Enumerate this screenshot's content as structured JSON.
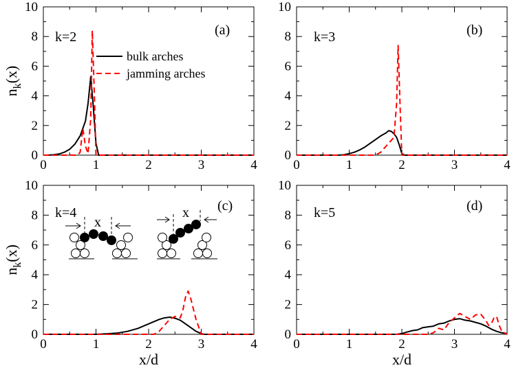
{
  "chart_data": [
    {
      "type": "line",
      "panel": "(a)",
      "k_label": "k=2",
      "xlabel": "",
      "ylabel": "n_k(x)",
      "xlim": [
        0,
        4
      ],
      "ylim": [
        0,
        10
      ],
      "xticks": [
        "0",
        "1",
        "2",
        "3",
        "4"
      ],
      "yticks": [
        "0",
        "2",
        "4",
        "6",
        "8",
        "10"
      ],
      "legend": {
        "position": "top-center",
        "entries": [
          "bulk arches",
          "jamming arches"
        ]
      },
      "series": [
        {
          "name": "bulk arches",
          "style": "solid",
          "color": "#000000",
          "x": [
            0,
            0.1,
            0.2,
            0.3,
            0.4,
            0.5,
            0.6,
            0.7,
            0.8,
            0.85,
            0.9,
            0.95,
            1.0,
            1.05,
            1.1,
            4
          ],
          "y": [
            0,
            0,
            0.03,
            0.08,
            0.2,
            0.4,
            0.75,
            1.3,
            2.3,
            3.5,
            5.3,
            3.2,
            0.8,
            0,
            0,
            0
          ]
        },
        {
          "name": "jamming arches",
          "style": "dashed",
          "color": "#ff0000",
          "x": [
            0,
            0.65,
            0.7,
            0.75,
            0.8,
            0.85,
            0.9,
            0.93,
            0.97,
            1.0,
            4
          ],
          "y": [
            0,
            0,
            0.2,
            1.8,
            0.6,
            0.1,
            2.5,
            8.4,
            4.0,
            0,
            0
          ]
        }
      ]
    },
    {
      "type": "line",
      "panel": "(b)",
      "k_label": "k=3",
      "xlabel": "",
      "ylabel": "",
      "xlim": [
        0,
        4
      ],
      "ylim": [
        0,
        10
      ],
      "xticks": [
        "0",
        "1",
        "2",
        "3",
        "4"
      ],
      "yticks": [
        "0",
        "2",
        "4",
        "6",
        "8",
        "10"
      ],
      "series": [
        {
          "name": "bulk arches",
          "style": "solid",
          "color": "#000000",
          "x": [
            0,
            0.8,
            0.9,
            1.0,
            1.1,
            1.2,
            1.3,
            1.4,
            1.5,
            1.6,
            1.7,
            1.75,
            1.8,
            1.85,
            1.9,
            1.95,
            2.0,
            2.05,
            4
          ],
          "y": [
            0,
            0,
            0.03,
            0.1,
            0.2,
            0.35,
            0.55,
            0.8,
            1.05,
            1.3,
            1.5,
            1.65,
            1.6,
            1.45,
            1.2,
            0.7,
            0.1,
            0,
            0
          ]
        },
        {
          "name": "jamming arches",
          "style": "dashed",
          "color": "#ff0000",
          "x": [
            0,
            1.5,
            1.6,
            1.7,
            1.8,
            1.85,
            1.9,
            1.93,
            1.97,
            2.0,
            4
          ],
          "y": [
            0,
            0,
            0.2,
            0.6,
            1.0,
            1.2,
            3.5,
            7.4,
            3.0,
            0,
            0
          ]
        }
      ]
    },
    {
      "type": "line",
      "panel": "(c)",
      "k_label": "k=4",
      "xlabel": "x/d",
      "ylabel": "n_k(x)",
      "xlim": [
        0,
        4
      ],
      "ylim": [
        0,
        10
      ],
      "xticks": [
        "0",
        "1",
        "2",
        "3",
        "4"
      ],
      "yticks": [
        "0",
        "2",
        "4",
        "6",
        "8",
        "10"
      ],
      "inset_label": "x",
      "series": [
        {
          "name": "bulk arches",
          "style": "solid",
          "color": "#000000",
          "x": [
            0,
            1.0,
            1.2,
            1.4,
            1.6,
            1.8,
            1.9,
            2.0,
            2.1,
            2.2,
            2.3,
            2.4,
            2.5,
            2.6,
            2.7,
            2.8,
            2.9,
            3.0,
            3.05,
            4
          ],
          "y": [
            0,
            0,
            0.03,
            0.08,
            0.2,
            0.4,
            0.55,
            0.7,
            0.85,
            1.0,
            1.1,
            1.15,
            1.08,
            0.95,
            0.7,
            0.45,
            0.2,
            0.05,
            0,
            0
          ]
        },
        {
          "name": "jamming arches",
          "style": "dashed",
          "color": "#ff0000",
          "x": [
            0,
            2.1,
            2.2,
            2.3,
            2.4,
            2.5,
            2.6,
            2.65,
            2.7,
            2.75,
            2.8,
            2.9,
            3.0,
            4
          ],
          "y": [
            0,
            0,
            0.2,
            0.6,
            1.0,
            1.2,
            1.1,
            1.6,
            2.5,
            2.9,
            2.4,
            1.0,
            0,
            0
          ]
        }
      ]
    },
    {
      "type": "line",
      "panel": "(d)",
      "k_label": "k=5",
      "xlabel": "x/d",
      "ylabel": "",
      "xlim": [
        0,
        4
      ],
      "ylim": [
        0,
        10
      ],
      "xticks": [
        "0",
        "1",
        "2",
        "3",
        "4"
      ],
      "yticks": [
        "0",
        "2",
        "4",
        "6",
        "8",
        "10"
      ],
      "series": [
        {
          "name": "bulk arches",
          "style": "solid",
          "color": "#000000",
          "x": [
            0,
            1.9,
            2.0,
            2.1,
            2.2,
            2.3,
            2.4,
            2.5,
            2.6,
            2.7,
            2.8,
            2.9,
            3.0,
            3.1,
            3.2,
            3.3,
            3.4,
            3.5,
            3.6,
            3.7,
            3.8,
            3.9,
            4.0
          ],
          "y": [
            0,
            0,
            0.05,
            0.15,
            0.25,
            0.3,
            0.45,
            0.5,
            0.55,
            0.7,
            0.75,
            0.9,
            1.0,
            1.05,
            0.95,
            0.9,
            0.8,
            0.7,
            0.55,
            0.35,
            0.2,
            0.1,
            0.05
          ]
        },
        {
          "name": "jamming arches",
          "style": "dashed",
          "color": "#ff0000",
          "x": [
            0,
            2.5,
            2.6,
            2.7,
            2.8,
            2.9,
            3.0,
            3.1,
            3.2,
            3.3,
            3.4,
            3.5,
            3.6,
            3.65,
            3.7,
            3.75,
            3.8,
            3.85,
            3.9,
            4.0
          ],
          "y": [
            0,
            0,
            0.1,
            0.4,
            0.3,
            0.8,
            1.1,
            1.4,
            1.2,
            1.0,
            1.3,
            1.35,
            0.9,
            0.6,
            0.7,
            1.1,
            1.2,
            0.6,
            0.2,
            0
          ]
        }
      ]
    }
  ]
}
